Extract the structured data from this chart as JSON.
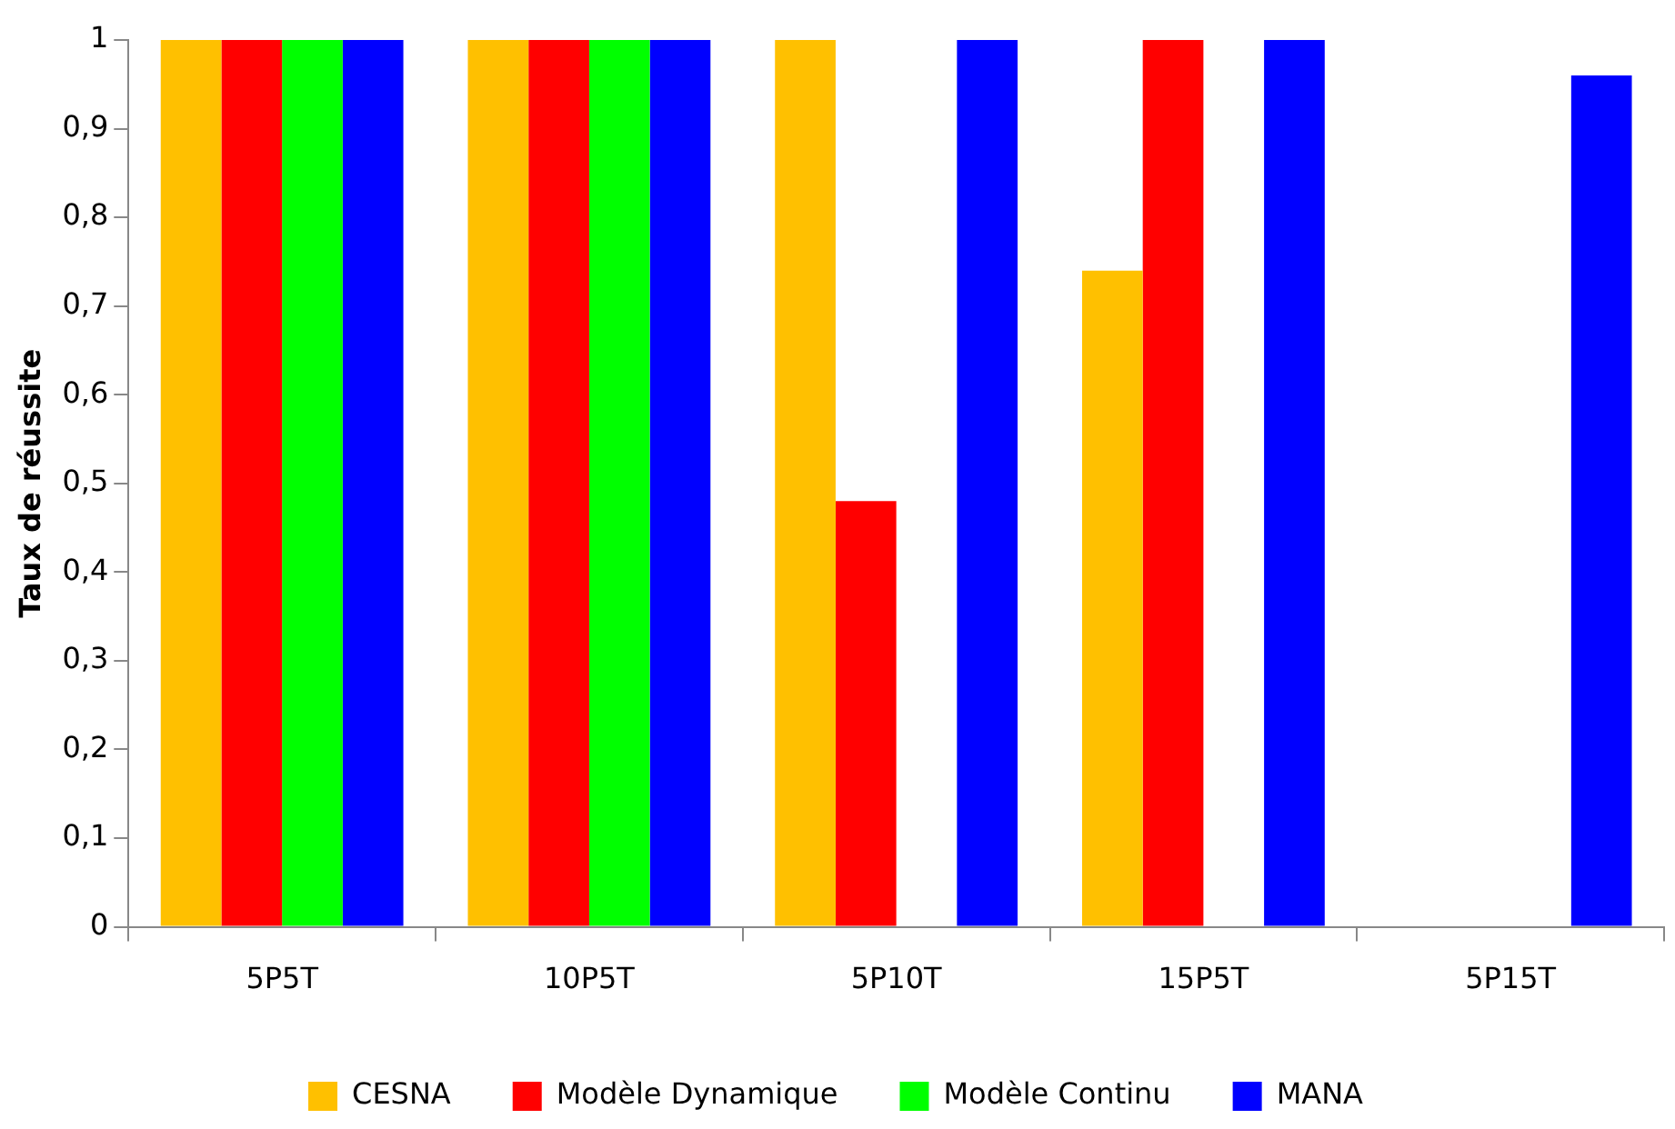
{
  "chart_data": {
    "type": "bar",
    "ylabel": "Taux de réussite",
    "categories": [
      "5P5T",
      "10P5T",
      "5P10T",
      "15P5T",
      "5P15T"
    ],
    "series": [
      {
        "name": "CESNA",
        "color": "#ffc000",
        "values": [
          1,
          1,
          1,
          0.74,
          0
        ]
      },
      {
        "name": "Modèle Dynamique",
        "color": "#ff0000",
        "values": [
          1,
          1,
          0.48,
          1,
          0
        ]
      },
      {
        "name": "Modèle Continu",
        "color": "#00ff00",
        "values": [
          1,
          1,
          0,
          0,
          0
        ]
      },
      {
        "name": "MANA",
        "color": "#0000ff",
        "values": [
          1,
          1,
          1,
          1,
          0.96
        ]
      }
    ],
    "ylim": [
      0,
      1
    ],
    "yticks": [
      {
        "value": 0,
        "label": "0"
      },
      {
        "value": 0.1,
        "label": "0,1"
      },
      {
        "value": 0.2,
        "label": "0,2"
      },
      {
        "value": 0.3,
        "label": "0,3"
      },
      {
        "value": 0.4,
        "label": "0,4"
      },
      {
        "value": 0.5,
        "label": "0,5"
      },
      {
        "value": 0.6,
        "label": "0,6"
      },
      {
        "value": 0.7,
        "label": "0,7"
      },
      {
        "value": 0.8,
        "label": "0,8"
      },
      {
        "value": 0.9,
        "label": "0,9"
      },
      {
        "value": 1,
        "label": "1"
      }
    ],
    "grid": false,
    "legend": "bottom"
  }
}
